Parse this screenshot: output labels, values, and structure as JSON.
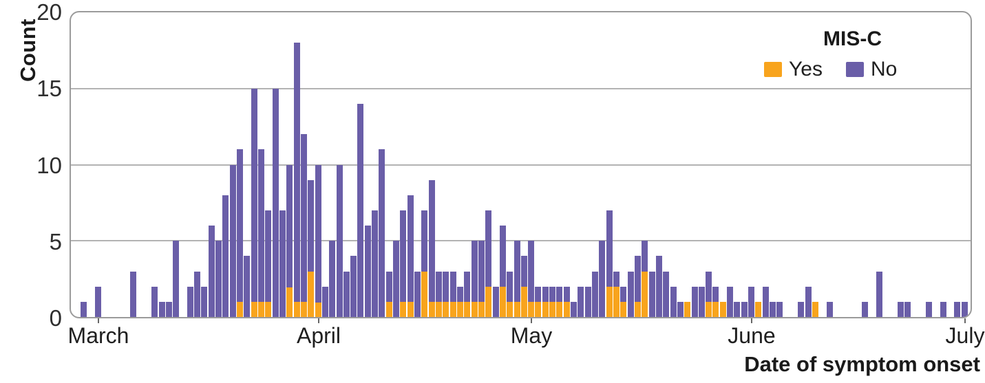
{
  "figure": {
    "y_axis_title": "Count",
    "x_axis_title": "Date of symptom onset",
    "legend": {
      "title": "MIS-C",
      "items": [
        {
          "label": "Yes",
          "color": "#F8A41D"
        },
        {
          "label": "No",
          "color": "#6A5EA8"
        }
      ]
    }
  },
  "chart_data": {
    "type": "bar",
    "stacked": true,
    "title": "",
    "xlabel": "Date of symptom onset",
    "ylabel": "Count",
    "ylim": [
      0,
      20
    ],
    "grid": "horizontal",
    "legend_position": "top-right-inside",
    "y_ticks": [
      0,
      5,
      10,
      15,
      20
    ],
    "x_tick_labels": [
      "March",
      "April",
      "May",
      "June",
      "July"
    ],
    "x_tick_day_indices": [
      2,
      33,
      63,
      94,
      124
    ],
    "colors": {
      "yes": "#F8A41D",
      "no": "#6A5EA8",
      "gridline": "#b3b3b3",
      "panel_border": "#9b9b9b"
    },
    "series": [
      {
        "name": "Yes",
        "values": [
          0,
          0,
          0,
          0,
          0,
          0,
          0,
          0,
          0,
          0,
          0,
          0,
          0,
          0,
          0,
          0,
          0,
          0,
          0,
          0,
          0,
          0,
          1,
          0,
          1,
          1,
          1,
          0,
          0,
          2,
          1,
          1,
          3,
          1,
          0,
          0,
          0,
          0,
          0,
          0,
          0,
          0,
          0,
          1,
          0,
          1,
          1,
          0,
          3,
          1,
          1,
          1,
          1,
          1,
          1,
          1,
          1,
          2,
          0,
          2,
          1,
          1,
          2,
          1,
          1,
          1,
          1,
          1,
          1,
          0,
          0,
          0,
          0,
          0,
          2,
          2,
          1,
          0,
          1,
          3,
          0,
          0,
          0,
          0,
          0,
          1,
          0,
          0,
          1,
          1,
          1,
          0,
          0,
          0,
          0,
          1,
          0,
          0,
          0,
          0,
          0,
          0,
          0,
          1,
          0,
          0,
          0,
          0,
          0,
          0,
          0,
          0,
          0,
          0,
          0,
          0,
          0,
          0,
          0,
          0,
          0,
          0,
          0,
          0,
          0
        ]
      },
      {
        "name": "No",
        "values": [
          1,
          0,
          2,
          0,
          0,
          0,
          0,
          3,
          0,
          0,
          2,
          1,
          1,
          5,
          0,
          2,
          3,
          2,
          6,
          5,
          8,
          10,
          10,
          4,
          14,
          10,
          6,
          15,
          7,
          8,
          17,
          11,
          6,
          9,
          2,
          5,
          10,
          3,
          4,
          14,
          6,
          7,
          11,
          2,
          5,
          6,
          7,
          3,
          4,
          8,
          2,
          2,
          2,
          1,
          2,
          4,
          4,
          5,
          2,
          4,
          2,
          4,
          2,
          4,
          1,
          1,
          1,
          1,
          1,
          1,
          2,
          2,
          3,
          5,
          5,
          1,
          1,
          3,
          3,
          2,
          3,
          4,
          3,
          2,
          1,
          0,
          2,
          2,
          2,
          1,
          0,
          2,
          1,
          1,
          2,
          0,
          2,
          1,
          1,
          0,
          0,
          1,
          2,
          0,
          0,
          1,
          0,
          0,
          0,
          0,
          1,
          0,
          3,
          0,
          0,
          1,
          1,
          0,
          0,
          1,
          0,
          1,
          0,
          1,
          1
        ]
      }
    ]
  }
}
